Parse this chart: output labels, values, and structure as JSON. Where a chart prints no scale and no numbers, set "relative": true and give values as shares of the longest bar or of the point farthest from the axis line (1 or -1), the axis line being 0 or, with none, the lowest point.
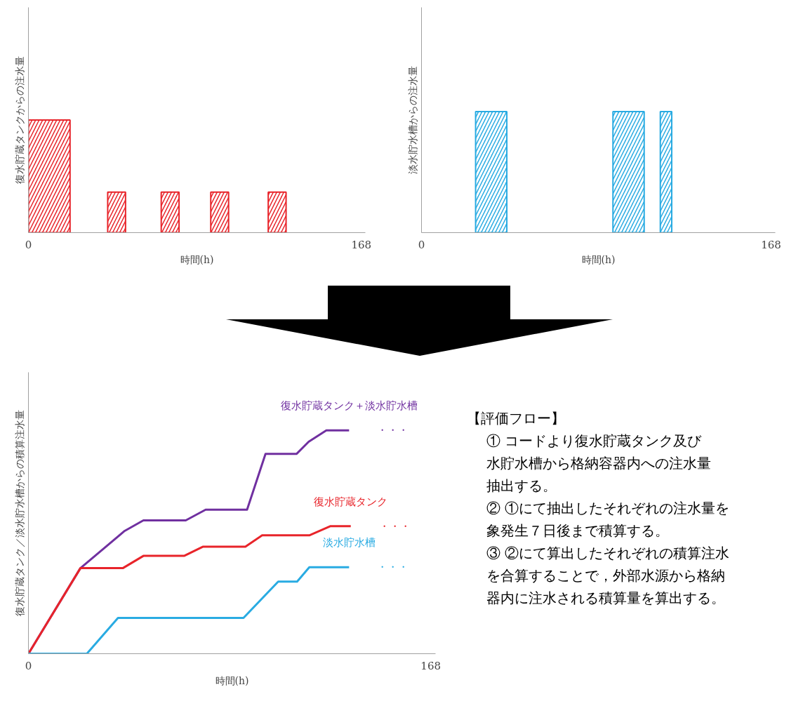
{
  "chart_data": [
    {
      "type": "bar",
      "ylabel": "復水貯蔵タンクからの注水量",
      "xlabel": "時間(h)",
      "relative": true,
      "color": "#e8242a",
      "x": [
        10.5,
        44.5,
        71.5,
        96.5,
        125.5
      ],
      "values": [
        1,
        0.36,
        0.36,
        0.36,
        0.36
      ],
      "xlim": [
        0,
        170
      ],
      "xticks": [
        0,
        168
      ],
      "grid": false,
      "legend": false
    },
    {
      "type": "bar",
      "ylabel": "淡水貯水槽からの注水量",
      "xlabel": "時間(h)",
      "relative": true,
      "color": "#29abe2",
      "x": [
        33.5,
        99.5,
        117.5
      ],
      "values": [
        1,
        1,
        1
      ],
      "xlim": [
        0,
        170
      ],
      "xticks": [
        0,
        168
      ],
      "grid": false,
      "legend": false
    },
    {
      "type": "line",
      "ylabel": "復水貯蔵タンク／淡水貯水槽からの積算注水量",
      "xlabel": "時間(h)",
      "relative": true,
      "xlim": [
        0,
        170
      ],
      "xticks": [
        0,
        168
      ],
      "grid": false,
      "legend": false,
      "series": [
        {
          "name": "復水貯蔵タンク＋淡水貯水槽",
          "color": "#7030a0",
          "x": [
            0,
            21.7,
            40.2,
            48,
            65.7,
            74,
            91.3,
            99,
            112,
            117,
            124.4,
            133.9
          ],
          "values": [
            0,
            0.383,
            0.55,
            0.597,
            0.597,
            0.645,
            0.645,
            0.895,
            0.895,
            0.949,
            1,
            1
          ]
        },
        {
          "name": "復水貯蔵タンク",
          "color": "#e8242a",
          "x": [
            0,
            21.7,
            39.4,
            48,
            65,
            72.8,
            90.6,
            97.6,
            117.3,
            126,
            134.6
          ],
          "values": [
            0,
            0.383,
            0.383,
            0.438,
            0.438,
            0.479,
            0.479,
            0.53,
            0.53,
            0.571,
            0.571
          ]
        },
        {
          "name": "淡水貯水槽",
          "color": "#29abe2",
          "x": [
            0,
            24.4,
            37.4,
            89.8,
            104.3,
            112.2,
            117.3,
            133.9
          ],
          "values": [
            0,
            0,
            0.16,
            0.16,
            0.323,
            0.323,
            0.387,
            0.387
          ]
        }
      ],
      "annotations": [
        "・・・",
        "・・・",
        "・・・"
      ]
    },
    {
      "type": "other",
      "title": "【評価フロー】",
      "annotations": [
        "① コードより復水貯蔵タンク及び",
        "水貯水槽から格納容器内への注水量",
        "抽出する。",
        "② ①にて抽出したそれぞれの注水量を",
        "象発生７日後まで積算する。",
        "③ ②にて算出したそれぞれの積算注水",
        "を合算することで，外部水源から格納",
        "器内に注水される積算量を算出する。"
      ]
    }
  ]
}
